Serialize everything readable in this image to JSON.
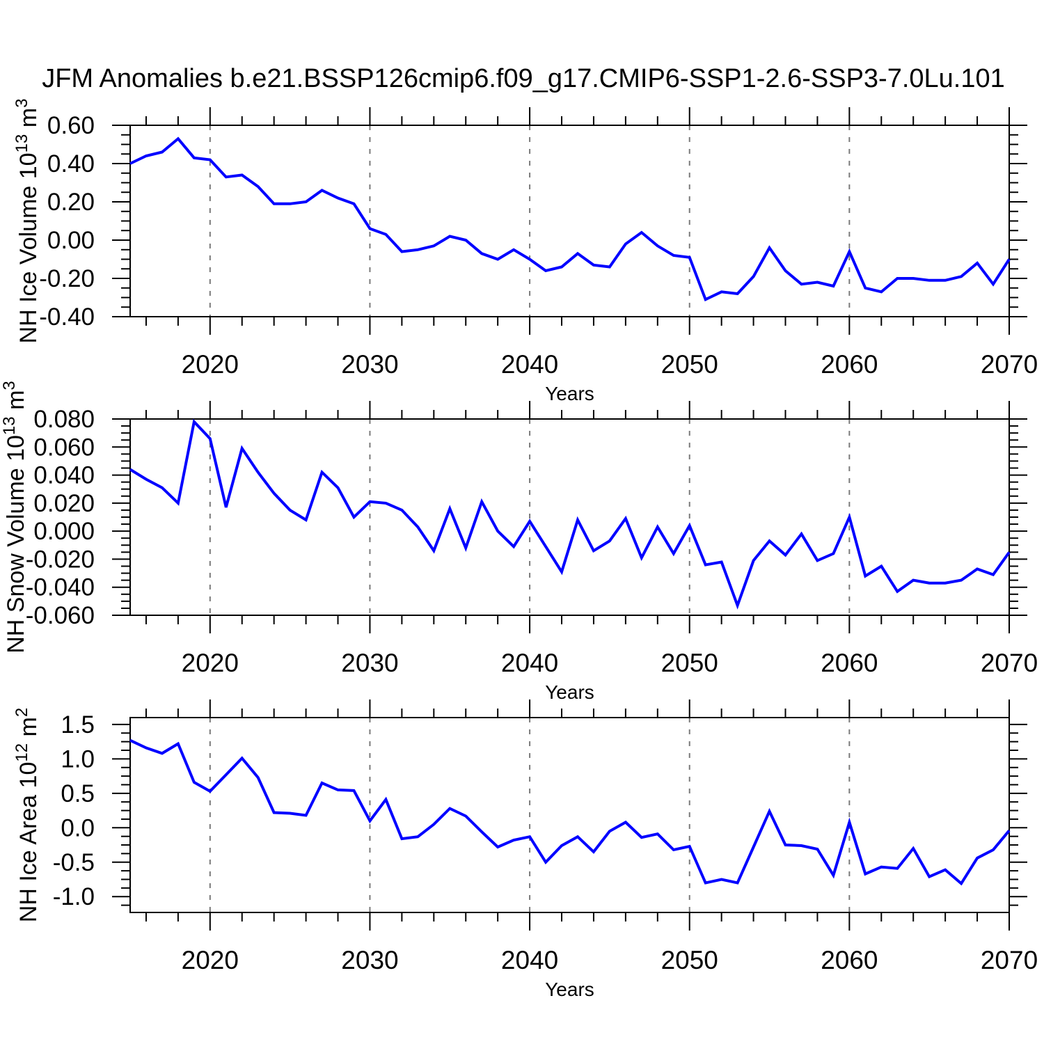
{
  "title": "JFM Anomalies b.e21.BSSP126cmip6.f09_g17.CMIP6-SSP1-2.6-SSP3-7.0Lu.101",
  "xlabel": "Years",
  "colors": {
    "line": "#0000ff",
    "grid": "#7a7a7a",
    "axis": "#000000"
  },
  "x_axis": {
    "start_year": 2015,
    "end_year": 2070,
    "major_ticks": [
      2020,
      2030,
      2040,
      2050,
      2060,
      2070
    ],
    "major_tick_labels": [
      "2020",
      "2030",
      "2040",
      "2050",
      "2060",
      "2070"
    ],
    "minor_tick_step_years": 2,
    "gridline_years": [
      2020,
      2030,
      2040,
      2050,
      2060
    ]
  },
  "years": [
    2015,
    2016,
    2017,
    2018,
    2019,
    2020,
    2021,
    2022,
    2023,
    2024,
    2025,
    2026,
    2027,
    2028,
    2029,
    2030,
    2031,
    2032,
    2033,
    2034,
    2035,
    2036,
    2037,
    2038,
    2039,
    2040,
    2041,
    2042,
    2043,
    2044,
    2045,
    2046,
    2047,
    2048,
    2049,
    2050,
    2051,
    2052,
    2053,
    2054,
    2055,
    2056,
    2057,
    2058,
    2059,
    2060,
    2061,
    2062,
    2063,
    2064,
    2065,
    2066,
    2067,
    2068,
    2069,
    2070
  ],
  "chart_data": [
    {
      "type": "line",
      "ylabel": "NH Ice Volume 10^13^ m^3^",
      "ylim": [
        -0.4,
        0.6
      ],
      "ytick_values": [
        0.6,
        0.4,
        0.2,
        0.0,
        -0.2,
        -0.4
      ],
      "ytick_labels": [
        "0.60",
        "0.40",
        "0.20",
        "0.00",
        "-0.20",
        "-0.40"
      ],
      "yminor_step": 0.05,
      "values": [
        0.4,
        0.44,
        0.46,
        0.53,
        0.43,
        0.42,
        0.33,
        0.34,
        0.28,
        0.19,
        0.19,
        0.2,
        0.26,
        0.22,
        0.19,
        0.06,
        0.03,
        -0.06,
        -0.05,
        -0.03,
        0.02,
        0.0,
        -0.07,
        -0.1,
        -0.05,
        -0.1,
        -0.16,
        -0.14,
        -0.07,
        -0.13,
        -0.14,
        -0.02,
        0.04,
        -0.03,
        -0.08,
        -0.09,
        -0.31,
        -0.27,
        -0.28,
        -0.19,
        -0.04,
        -0.16,
        -0.23,
        -0.22,
        -0.24,
        -0.06,
        -0.25,
        -0.27,
        -0.2,
        -0.2,
        -0.21,
        -0.21,
        -0.19,
        -0.12,
        -0.23,
        -0.1
      ]
    },
    {
      "type": "line",
      "ylabel": "NH Snow Volume 10^13^ m^3^",
      "ylim": [
        -0.06,
        0.08
      ],
      "ytick_values": [
        0.08,
        0.06,
        0.04,
        0.02,
        0.0,
        -0.02,
        -0.04,
        -0.06
      ],
      "ytick_labels": [
        "0.080",
        "0.060",
        "0.040",
        "0.020",
        "0.000",
        "-0.020",
        "-0.040",
        "-0.060"
      ],
      "yminor_step": 0.005,
      "values": [
        0.044,
        0.037,
        0.031,
        0.02,
        0.078,
        0.066,
        0.017,
        0.059,
        0.042,
        0.027,
        0.015,
        0.008,
        0.042,
        0.031,
        0.01,
        0.021,
        0.02,
        0.015,
        0.003,
        -0.014,
        0.016,
        -0.012,
        0.021,
        0.0,
        -0.011,
        0.007,
        -0.011,
        -0.029,
        0.008,
        -0.014,
        -0.007,
        0.009,
        -0.019,
        0.003,
        -0.016,
        0.004,
        -0.024,
        -0.022,
        -0.053,
        -0.021,
        -0.007,
        -0.017,
        -0.002,
        -0.021,
        -0.016,
        0.01,
        -0.032,
        -0.025,
        -0.043,
        -0.035,
        -0.037,
        -0.037,
        -0.035,
        -0.027,
        -0.031,
        -0.015
      ]
    },
    {
      "type": "line",
      "ylabel": "NH Ice Area 10^12^ m^2^",
      "ylim": [
        -1.23,
        1.6
      ],
      "ytick_values": [
        1.5,
        1.0,
        0.5,
        0.0,
        -0.5,
        -1.0
      ],
      "ytick_labels": [
        "1.5",
        "1.0",
        "0.5",
        "0.0",
        "-0.5",
        "-1.0"
      ],
      "yminor_step": 0.125,
      "values": [
        1.27,
        1.16,
        1.08,
        1.22,
        0.66,
        0.53,
        0.77,
        1.01,
        0.73,
        0.22,
        0.21,
        0.18,
        0.65,
        0.55,
        0.54,
        0.1,
        0.41,
        -0.16,
        -0.13,
        0.05,
        0.28,
        0.17,
        -0.06,
        -0.28,
        -0.18,
        -0.13,
        -0.5,
        -0.26,
        -0.13,
        -0.35,
        -0.05,
        0.08,
        -0.14,
        -0.09,
        -0.32,
        -0.27,
        -0.8,
        -0.75,
        -0.8,
        -0.28,
        0.24,
        -0.25,
        -0.26,
        -0.31,
        -0.69,
        0.08,
        -0.67,
        -0.57,
        -0.59,
        -0.3,
        -0.71,
        -0.61,
        -0.81,
        -0.44,
        -0.32,
        -0.04
      ]
    }
  ]
}
